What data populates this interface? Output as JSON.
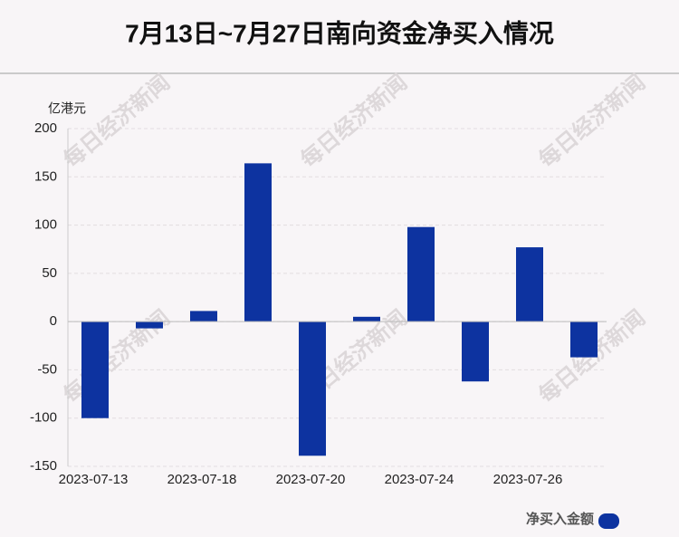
{
  "chart_data": {
    "type": "bar",
    "title": "7月13日~7月27日南向资金净买入情况",
    "y_label": "亿港元",
    "watermark": "每日经济新闻",
    "categories": [
      "2023-07-13",
      null,
      "2023-07-18",
      null,
      "2023-07-20",
      null,
      "2023-07-24",
      null,
      "2023-07-26",
      null
    ],
    "series": [
      {
        "name": "净买入金额",
        "color": "#0d33a0",
        "values": [
          -100,
          -7,
          11,
          164,
          -139,
          5,
          98,
          -62,
          77,
          -37
        ]
      }
    ],
    "ylim": [
      -150,
      200
    ],
    "yticks": [
      -150,
      -100,
      -50,
      0,
      50,
      100,
      150,
      200
    ],
    "grid": true,
    "legend": "bottom-right"
  }
}
